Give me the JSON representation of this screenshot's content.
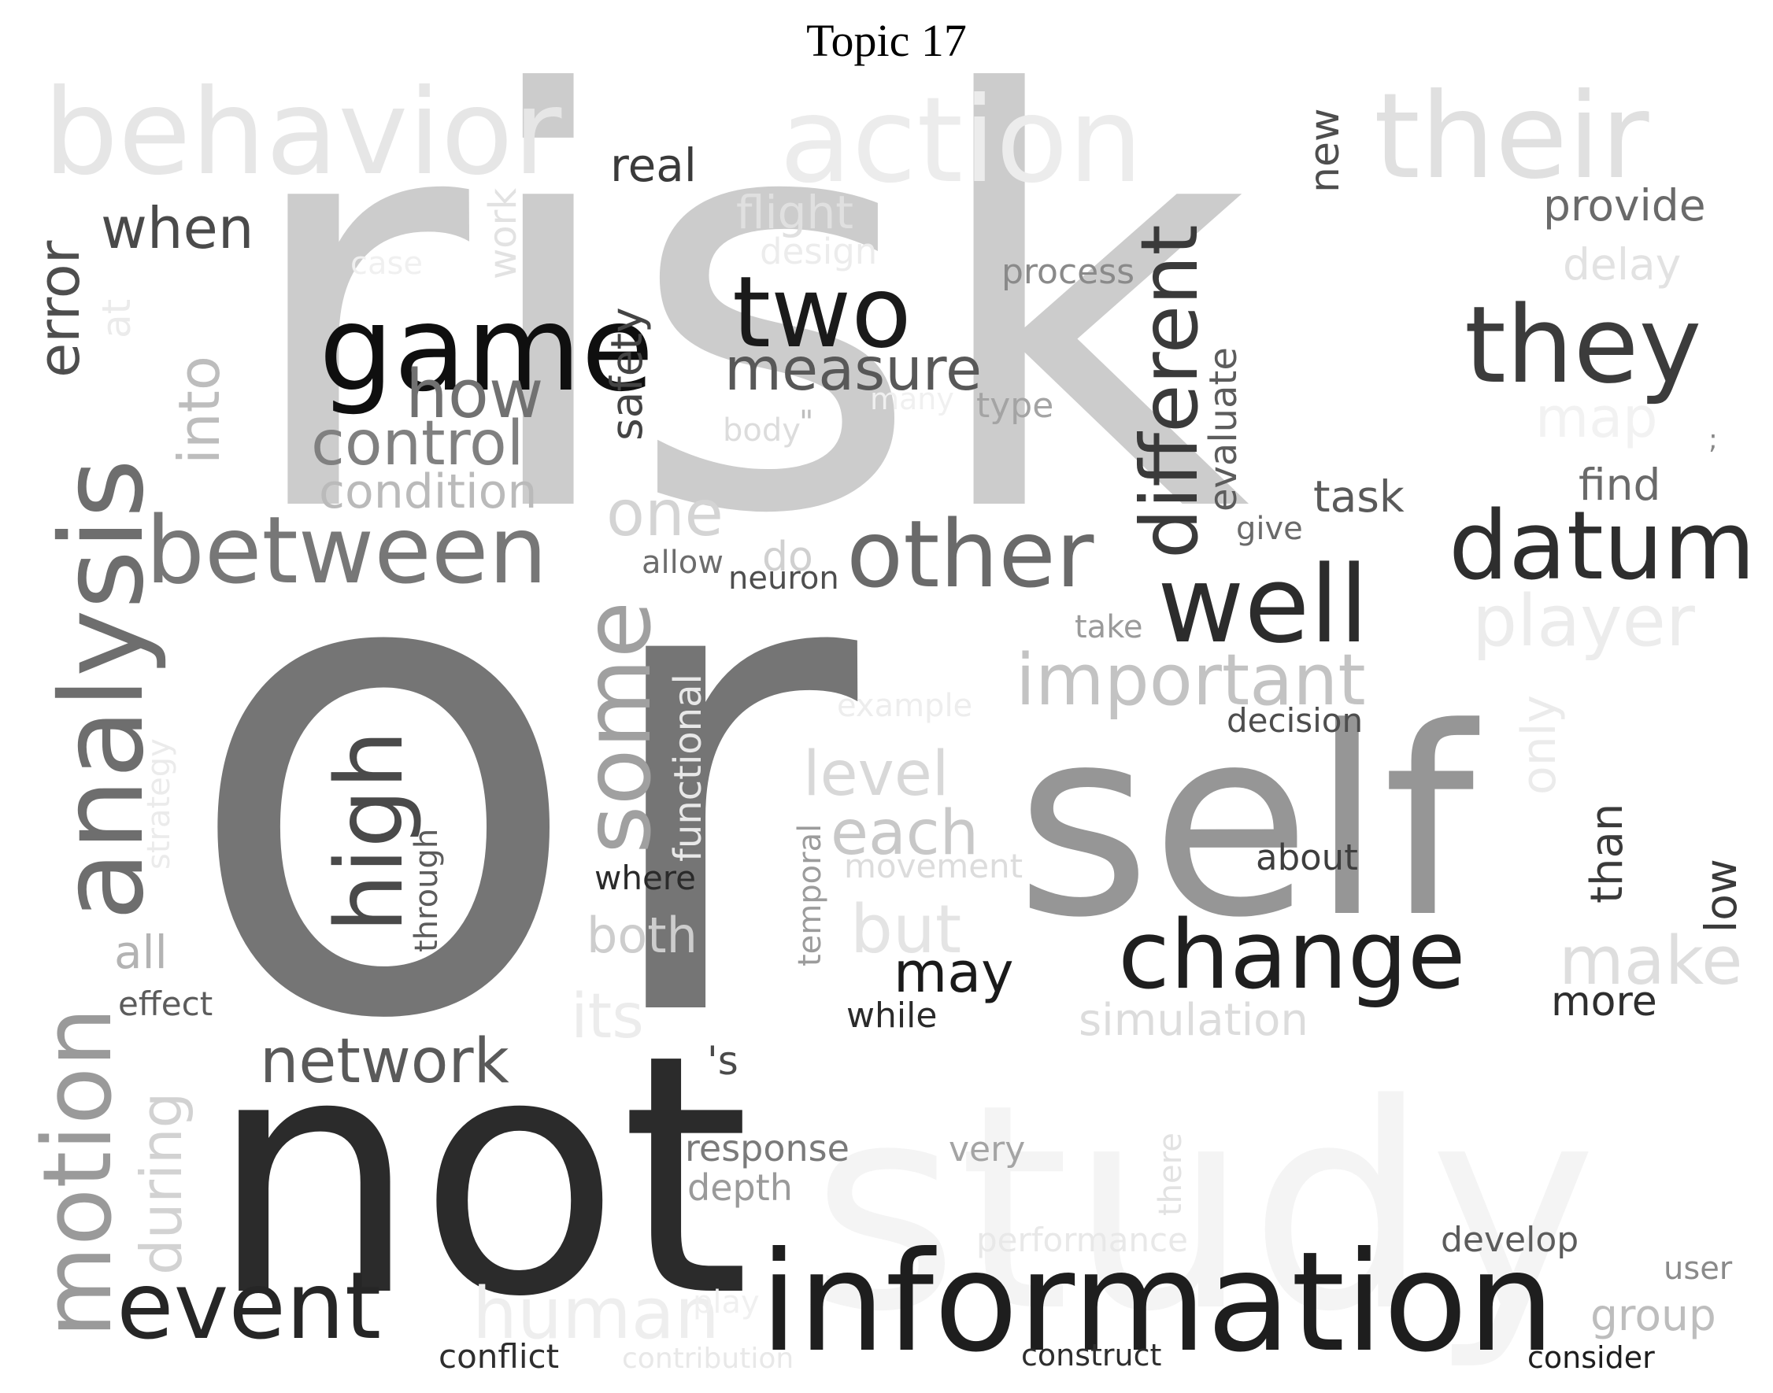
{
  "title": "Topic 17",
  "words": [
    {
      "text": "study",
      "color": "#f4f4f4"
    },
    {
      "text": "risk",
      "color": "#cccccc"
    },
    {
      "text": "or",
      "color": "#757575"
    },
    {
      "text": "not",
      "color": "#2b2b2b"
    },
    {
      "text": "self",
      "color": "#969696"
    },
    {
      "text": "information",
      "color": "#1e1e1e"
    },
    {
      "text": "behavior",
      "color": "#e6e6e6"
    },
    {
      "text": "action",
      "color": "#ececec"
    },
    {
      "text": "their",
      "color": "#e0e0e0"
    },
    {
      "text": "analysis",
      "color": "#6e6e6e"
    },
    {
      "text": "motion",
      "color": "#9a9a9a"
    },
    {
      "text": "game",
      "color": "#0f0f0f"
    },
    {
      "text": "two",
      "color": "#1a1a1a"
    },
    {
      "text": "they",
      "color": "#3c3c3c"
    },
    {
      "text": "datum",
      "color": "#2e2e2e"
    },
    {
      "text": "well",
      "color": "#2c2c2c"
    },
    {
      "text": "between",
      "color": "#777777"
    },
    {
      "text": "other",
      "color": "#6a6a6a"
    },
    {
      "text": "change",
      "color": "#1f1f1f"
    },
    {
      "text": "event",
      "color": "#262626"
    },
    {
      "text": "high",
      "color": "#4a4a4a"
    },
    {
      "text": "some",
      "color": "#a0a0a0"
    },
    {
      "text": "different",
      "color": "#3a3a3a"
    },
    {
      "text": "important",
      "color": "#c3c3c3"
    },
    {
      "text": "player",
      "color": "#ececec"
    },
    {
      "text": "network",
      "color": "#5a5a5a"
    },
    {
      "text": "human",
      "color": "#eeeeee"
    },
    {
      "text": "measure",
      "color": "#585858"
    },
    {
      "text": "how",
      "color": "#717171"
    },
    {
      "text": "control",
      "color": "#808080"
    },
    {
      "text": "condition",
      "color": "#bababa"
    },
    {
      "text": "error",
      "color": "#4e4e4e"
    },
    {
      "text": "when",
      "color": "#4a4a4a"
    },
    {
      "text": "into",
      "color": "#bdbdbd"
    },
    {
      "text": "during",
      "color": "#d2d2d2"
    },
    {
      "text": "one",
      "color": "#d4d4d4"
    },
    {
      "text": "each",
      "color": "#c8c8c8"
    },
    {
      "text": "level",
      "color": "#d8d8d8"
    },
    {
      "text": "but",
      "color": "#e4e4e4"
    },
    {
      "text": "make",
      "color": "#dedede"
    },
    {
      "text": "may",
      "color": "#1a1a1a"
    },
    {
      "text": "its",
      "color": "#ececec"
    },
    {
      "text": "both",
      "color": "#cdcdcd"
    },
    {
      "text": "all",
      "color": "#b3b3b3"
    },
    {
      "text": "real",
      "color": "#3a3a3a"
    },
    {
      "text": "flight",
      "color": "#e0e0e0"
    },
    {
      "text": "design",
      "color": "#ececec"
    },
    {
      "text": "case",
      "color": "#f0f0f0"
    },
    {
      "text": "work",
      "color": "#e2e2e2"
    },
    {
      "text": "at",
      "color": "#ebebeb"
    },
    {
      "text": "safety",
      "color": "#444444"
    },
    {
      "text": "process",
      "color": "#8a8a8a"
    },
    {
      "text": "type",
      "color": "#a4a4a4"
    },
    {
      "text": "body",
      "color": "#dcdcdc"
    },
    {
      "text": "evaluate",
      "color": "#5c5c5c"
    },
    {
      "text": "new",
      "color": "#4e4e4e"
    },
    {
      "text": "provide",
      "color": "#6a6a6a"
    },
    {
      "text": "delay",
      "color": "#e2e2e2"
    },
    {
      "text": "map",
      "color": "#f2f2f2"
    },
    {
      "text": ";",
      "color": "#888888"
    },
    {
      "text": "find",
      "color": "#6a6a6a"
    },
    {
      "text": "task",
      "color": "#5a5a5a"
    },
    {
      "text": "give",
      "color": "#6a6a6a"
    },
    {
      "text": "allow",
      "color": "#6c6c6c"
    },
    {
      "text": "do",
      "color": "#d0d0d0"
    },
    {
      "text": "neuron",
      "color": "#4e4e4e"
    },
    {
      "text": "take",
      "color": "#9a9a9a"
    },
    {
      "text": "example",
      "color": "#ededed"
    },
    {
      "text": "decision",
      "color": "#4e4e4e"
    },
    {
      "text": "only",
      "color": "#ebebeb"
    },
    {
      "text": "functional",
      "color": "#e8e8e8"
    },
    {
      "text": "strategy",
      "color": "#ebebeb"
    },
    {
      "text": "through",
      "color": "#5c5c5c"
    },
    {
      "text": "temporal",
      "color": "#9c9c9c"
    },
    {
      "text": "where",
      "color": "#2a2a2a"
    },
    {
      "text": "movement",
      "color": "#dcdcdc"
    },
    {
      "text": "about",
      "color": "#3e3e3e"
    },
    {
      "text": "than",
      "color": "#3a3a3a"
    },
    {
      "text": "low",
      "color": "#3a3a3a"
    },
    {
      "text": "effect",
      "color": "#5c5c5c"
    },
    {
      "text": "while",
      "color": "#2a2a2a"
    },
    {
      "text": "simulation",
      "color": "#dcdcdc"
    },
    {
      "text": "more",
      "color": "#2e2e2e"
    },
    {
      "text": "'s",
      "color": "#4a4a4a"
    },
    {
      "text": "response",
      "color": "#7a7a7a"
    },
    {
      "text": "depth",
      "color": "#9a9a9a"
    },
    {
      "text": "very",
      "color": "#a4a4a4"
    },
    {
      "text": "there",
      "color": "#e2e2e2"
    },
    {
      "text": "performance",
      "color": "#e8e8e8"
    },
    {
      "text": "develop",
      "color": "#5c5c5c"
    },
    {
      "text": "user",
      "color": "#8a8a8a"
    },
    {
      "text": "group",
      "color": "#bdbdbd"
    },
    {
      "text": "play",
      "color": "#f0f0f0"
    },
    {
      "text": "conflict",
      "color": "#2e2e2e"
    },
    {
      "text": "contribution",
      "color": "#e8e8e8"
    },
    {
      "text": "construct",
      "color": "#2e2e2e"
    },
    {
      "text": "consider",
      "color": "#1e1e1e"
    },
    {
      "text": "\"",
      "color": "#bdbdbd"
    },
    {
      "text": ":",
      "color": "#cccccc"
    },
    {
      "text": "many",
      "color": "#f0f0f0"
    }
  ]
}
